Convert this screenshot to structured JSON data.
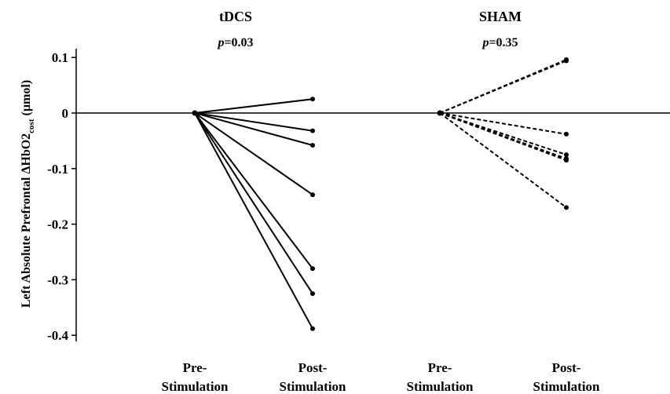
{
  "chart_data": {
    "type": "line",
    "ylabel_prefix": "Left Absolute Prefrontal ΔHbO2",
    "ylabel_subscript": "cost",
    "ylabel_suffix": " (µmol)",
    "ylim": [
      -0.42,
      0.13
    ],
    "yticks": [
      0.1,
      0,
      -0.1,
      -0.2,
      -0.3,
      -0.4
    ],
    "ytick_labels": [
      "0.1",
      "0",
      "-0.1",
      "-0.2",
      "-0.3",
      "-0.4"
    ],
    "grid": false,
    "panels": [
      {
        "title": "tDCS",
        "p_label": "p",
        "p_value": "=0.03",
        "categories": [
          "Pre-\nStimulation",
          "Post-\nStimulation"
        ],
        "line_style": "solid",
        "pre_values": [
          0,
          0,
          0,
          0,
          0,
          0,
          0
        ],
        "post_values": [
          0.025,
          -0.032,
          -0.058,
          -0.147,
          -0.28,
          -0.325,
          -0.388
        ]
      },
      {
        "title": "SHAM",
        "p_label": "p",
        "p_value": "=0.35",
        "categories": [
          "Pre-\nStimulation",
          "Post-\nStimulation"
        ],
        "line_style": "dashed",
        "pre_values": [
          0,
          0,
          0,
          0,
          0,
          0,
          0
        ],
        "post_values": [
          0.096,
          0.094,
          -0.038,
          -0.075,
          -0.082,
          -0.085,
          -0.17
        ]
      }
    ]
  }
}
